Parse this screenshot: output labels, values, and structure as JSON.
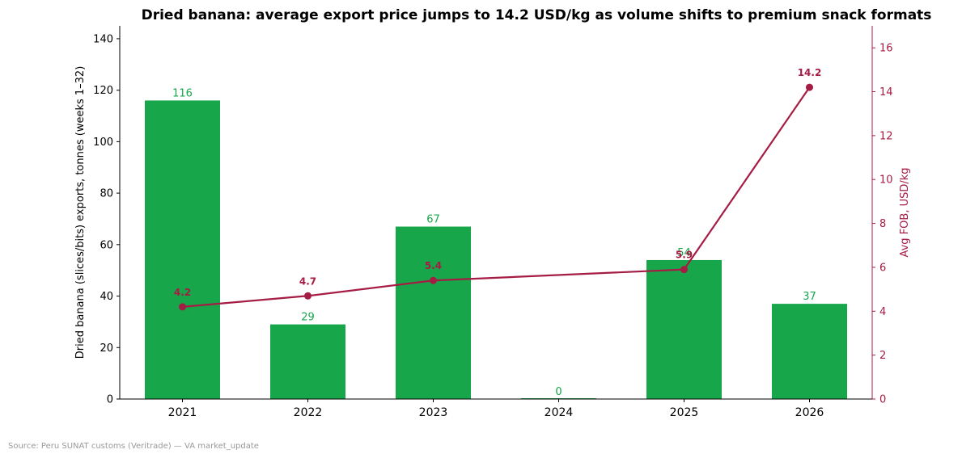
{
  "chart_data": {
    "type": "bar+line",
    "title": "Dried banana: average export price jumps to 14.2 USD/kg as volume shifts to premium snack formats",
    "categories": [
      "2021",
      "2022",
      "2023",
      "2024",
      "2025",
      "2026"
    ],
    "bar_series": {
      "values": [
        116,
        29,
        67,
        0,
        54,
        37
      ],
      "value_labels": [
        "116",
        "29",
        "67",
        "0",
        "54",
        "37"
      ],
      "color": "#17a74a"
    },
    "line_series": {
      "values": [
        4.2,
        4.7,
        5.4,
        null,
        5.9,
        14.2
      ],
      "value_labels": [
        "4.2",
        "4.7",
        "5.4",
        "",
        "5.9",
        "14.2"
      ],
      "color": "#a51c44"
    },
    "ylabel": "Dried banana (slices/bits) exports, tonnes (weeks 1–32)",
    "ylim": [
      0,
      145
    ],
    "yticks": [
      0,
      20,
      40,
      60,
      80,
      100,
      120,
      140
    ],
    "y2label": "Avg FOB, USD/kg",
    "y2lim": [
      0,
      17
    ],
    "y2ticks": [
      0,
      2,
      4,
      6,
      8,
      10,
      12,
      14,
      16
    ],
    "grid": false,
    "source": "Source: Peru SUNAT customs (Veritrade) — VA market_update"
  }
}
